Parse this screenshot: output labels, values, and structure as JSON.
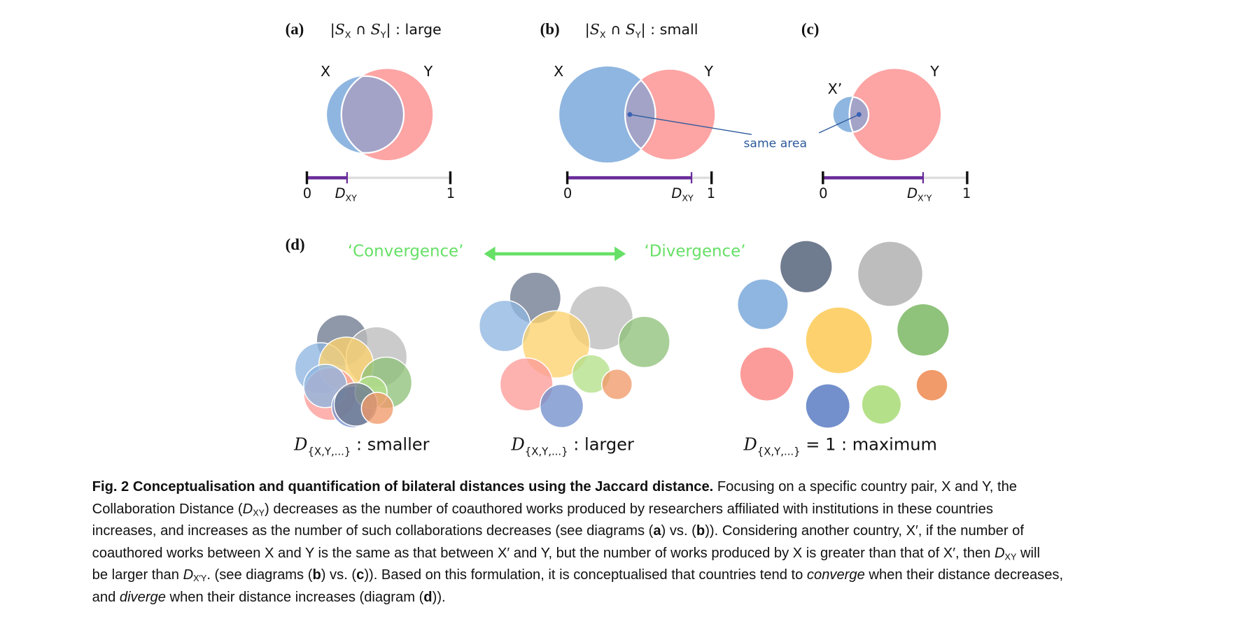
{
  "panel_a": {
    "label": "(a)",
    "set": "S",
    "sub_x": "X",
    "cap": "∩",
    "sub_y": "Y",
    "suffix": ": large",
    "x_label": "X",
    "y_label": "Y",
    "tick0": "0",
    "tick1": "1",
    "d": "D",
    "d_sub": "XY",
    "distance": 0.28
  },
  "panel_b": {
    "label": "(b)",
    "set": "S",
    "sub_x": "X",
    "cap": "∩",
    "sub_y": "Y",
    "suffix": ": small",
    "x_label": "X",
    "y_label": "Y",
    "tick0": "0",
    "tick1": "1",
    "d": "D",
    "d_sub": "XY",
    "distance": 0.86,
    "annotation": "same area"
  },
  "panel_c": {
    "label": "(c)",
    "x_label": "X’",
    "y_label": "Y",
    "tick0": "0",
    "tick1": "1",
    "d": "D",
    "d_sub": "X’Y",
    "distance": 0.7
  },
  "panel_d": {
    "label": "(d)",
    "convergence": "‘Convergence’",
    "divergence": "‘Divergence’",
    "captions": [
      {
        "d": "D",
        "sub": "{X,Y,...}",
        "rest": " : smaller"
      },
      {
        "d": "D",
        "sub": "{X,Y,...}",
        "rest": " : larger"
      },
      {
        "d": "D",
        "sub": "{X,Y,...}",
        "rest": " = 1 : maximum"
      }
    ]
  },
  "colors": {
    "x_set": "#8fb6e0",
    "y_set": "#fda4a4",
    "intersection": "#a3a3c8",
    "bar_track": "#dddddd",
    "distance_bar": "#6a2c9a",
    "annotation": "#2d5a9c",
    "arrow": "#66e066",
    "countries": [
      "#6f7b8f",
      "#bdbdbd",
      "#8fb6e0",
      "#fdd26e",
      "#8fc27a",
      "#fc9c9a",
      "#7390cc",
      "#b5e08a",
      "#f19a6a"
    ]
  },
  "caption": [
    [
      {
        "t": "Fig. 2 Conceptualisation and quantification of bilateral distances using the Jaccard distance.",
        "s": "b"
      },
      {
        "t": " Focusing on a specific country pair, X and Y, the"
      }
    ],
    [
      {
        "t": "Collaboration Distance ("
      },
      {
        "t": "D",
        "s": "i"
      },
      {
        "t": "XY",
        "s": "sub"
      },
      {
        "t": ") decreases as the number of coauthored works produced by researchers affiliated with institutions in these countries"
      }
    ],
    [
      {
        "t": "increases, and increases as the number of such collaborations decreases (see diagrams ("
      },
      {
        "t": "a",
        "s": "b"
      },
      {
        "t": ") vs. ("
      },
      {
        "t": "b",
        "s": "b"
      },
      {
        "t": ")). Considering another country, X′, if the number of"
      }
    ],
    [
      {
        "t": "coauthored works between X and Y is the same as that between X′ and Y, but the number of works produced by X is greater than that of X′, then "
      },
      {
        "t": "D",
        "s": "i"
      },
      {
        "t": "XY",
        "s": "sub"
      },
      {
        "t": " will"
      }
    ],
    [
      {
        "t": "be larger than "
      },
      {
        "t": "D",
        "s": "i"
      },
      {
        "t": "X′Y",
        "s": "sub"
      },
      {
        "t": ". (see diagrams ("
      },
      {
        "t": "b",
        "s": "b"
      },
      {
        "t": ") vs. ("
      },
      {
        "t": "c",
        "s": "b"
      },
      {
        "t": ")). Based on this formulation, it is conceptualised that countries tend to "
      },
      {
        "t": "converge",
        "s": "i"
      },
      {
        "t": " when their distance decreases,"
      }
    ],
    [
      {
        "t": "and "
      },
      {
        "t": "diverge",
        "s": "i"
      },
      {
        "t": " when their distance increases (diagram ("
      },
      {
        "t": "d",
        "s": "b"
      },
      {
        "t": "))."
      }
    ]
  ]
}
